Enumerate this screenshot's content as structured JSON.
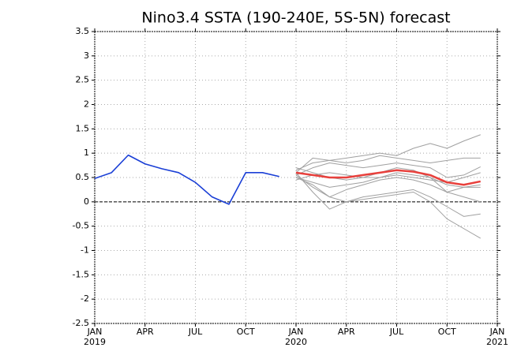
{
  "chart_data": {
    "type": "line",
    "title": "Nino3.4 SSTA (190-240E, 5S-5N) forecast",
    "xlim": [
      0,
      24
    ],
    "ylim": [
      -2.5,
      3.5
    ],
    "yticks": [
      -2.5,
      -2,
      -1.5,
      -1,
      -0.5,
      0,
      0.5,
      1,
      1.5,
      2,
      2.5,
      3,
      3.5
    ],
    "xticks": [
      {
        "value": 0,
        "label": "JAN",
        "sublabel": "2019"
      },
      {
        "value": 3,
        "label": "APR"
      },
      {
        "value": 6,
        "label": "JUL"
      },
      {
        "value": 9,
        "label": "OCT"
      },
      {
        "value": 12,
        "label": "JAN",
        "sublabel": "2020"
      },
      {
        "value": 15,
        "label": "APR"
      },
      {
        "value": 18,
        "label": "JUL"
      },
      {
        "value": 21,
        "label": "OCT"
      },
      {
        "value": 24,
        "label": "JAN",
        "sublabel": "2021"
      }
    ],
    "grid": true,
    "zero_line": true,
    "series": [
      {
        "color": "#a0a0a0",
        "linewidth": 1,
        "x": [
          12,
          13,
          14,
          15,
          16,
          17,
          18,
          19,
          20,
          21,
          22,
          23
        ],
        "values": [
          0.65,
          0.8,
          0.85,
          0.9,
          0.95,
          1.0,
          0.95,
          1.1,
          1.2,
          1.1,
          1.25,
          1.38
        ]
      },
      {
        "color": "#a0a0a0",
        "linewidth": 1,
        "x": [
          12,
          13,
          14,
          15,
          16,
          17,
          18,
          19,
          20,
          21,
          22,
          23
        ],
        "values": [
          0.6,
          0.9,
          0.85,
          0.8,
          0.85,
          0.95,
          0.9,
          0.85,
          0.8,
          0.85,
          0.9,
          0.9
        ]
      },
      {
        "color": "#a0a0a0",
        "linewidth": 1,
        "x": [
          12,
          13,
          14,
          15,
          16,
          17,
          18,
          19,
          20,
          21,
          22,
          23
        ],
        "values": [
          0.55,
          0.7,
          0.8,
          0.75,
          0.7,
          0.75,
          0.8,
          0.75,
          0.7,
          0.5,
          0.55,
          0.72
        ]
      },
      {
        "color": "#a0a0a0",
        "linewidth": 1,
        "x": [
          12,
          13,
          14,
          15,
          16,
          17,
          18,
          19,
          20,
          21,
          22,
          23
        ],
        "values": [
          0.5,
          0.4,
          0.3,
          0.35,
          0.4,
          0.5,
          0.55,
          0.5,
          0.45,
          0.4,
          0.5,
          0.6
        ]
      },
      {
        "color": "#a0a0a0",
        "linewidth": 1,
        "x": [
          12,
          13,
          14,
          15,
          16,
          17,
          18,
          19,
          20,
          21,
          22,
          23
        ],
        "values": [
          0.55,
          0.3,
          0.1,
          0.25,
          0.35,
          0.45,
          0.5,
          0.45,
          0.35,
          0.2,
          0.3,
          0.35
        ]
      },
      {
        "color": "#a0a0a0",
        "linewidth": 1,
        "x": [
          12,
          13,
          14,
          15,
          16,
          17,
          18,
          19,
          20,
          21,
          22,
          23
        ],
        "values": [
          0.6,
          0.2,
          -0.15,
          0.0,
          0.1,
          0.15,
          0.2,
          0.25,
          0.1,
          -0.1,
          -0.3,
          -0.25
        ]
      },
      {
        "color": "#a0a0a0",
        "linewidth": 1,
        "x": [
          12,
          13,
          14,
          15,
          16,
          17,
          18,
          19,
          20,
          21,
          22,
          23
        ],
        "values": [
          0.5,
          0.35,
          0.1,
          0.0,
          0.05,
          0.1,
          0.15,
          0.2,
          0.0,
          -0.35,
          -0.55,
          -0.75
        ]
      },
      {
        "color": "#a0a0a0",
        "linewidth": 1,
        "x": [
          12,
          13,
          14,
          15,
          16,
          17,
          18,
          19,
          20,
          21,
          22,
          23
        ],
        "values": [
          0.7,
          0.6,
          0.5,
          0.45,
          0.5,
          0.6,
          0.7,
          0.65,
          0.5,
          0.35,
          0.3,
          0.3
        ]
      },
      {
        "color": "#a0a0a0",
        "linewidth": 1,
        "x": [
          12,
          13,
          14,
          15,
          16,
          17,
          18,
          19,
          20,
          21,
          22,
          23
        ],
        "values": [
          0.45,
          0.55,
          0.6,
          0.55,
          0.5,
          0.5,
          0.6,
          0.55,
          0.5,
          0.2,
          0.1,
          0.0
        ]
      },
      {
        "color": "#e8403c",
        "linewidth": 2.5,
        "x": [
          12,
          13,
          14,
          15,
          16,
          17,
          18,
          19,
          20,
          21,
          22,
          23
        ],
        "values": [
          0.6,
          0.55,
          0.5,
          0.5,
          0.55,
          0.6,
          0.65,
          0.62,
          0.55,
          0.4,
          0.35,
          0.42
        ]
      },
      {
        "color": "#1a3fd6",
        "linewidth": 1.6,
        "x": [
          0,
          1,
          2,
          3,
          4,
          5,
          6,
          7,
          8,
          9,
          10,
          11
        ],
        "values": [
          0.48,
          0.6,
          0.96,
          0.78,
          0.68,
          0.6,
          0.4,
          0.1,
          -0.05,
          0.6,
          0.6,
          0.52
        ]
      }
    ]
  }
}
